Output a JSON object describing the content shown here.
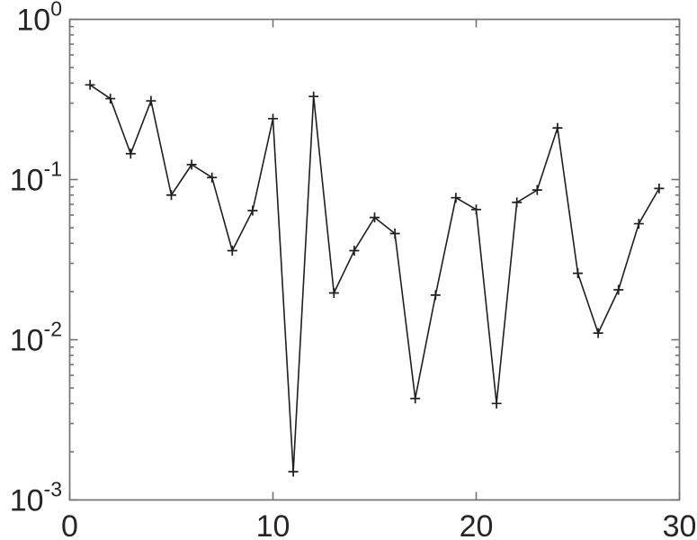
{
  "chart_data": {
    "type": "line",
    "title": "",
    "subtitle": "",
    "xlabel": "",
    "ylabel": "",
    "xscale": "linear",
    "yscale": "log",
    "xlim": [
      0,
      30
    ],
    "ylim": [
      0.001,
      1
    ],
    "grid": false,
    "legend": null,
    "marker": "+",
    "x": [
      1,
      2,
      3,
      4,
      5,
      6,
      7,
      8,
      9,
      10,
      11,
      12,
      13,
      14,
      15,
      16,
      17,
      18,
      19,
      20,
      21,
      22,
      23,
      24,
      25,
      26,
      27,
      28,
      29
    ],
    "y": [
      0.39,
      0.32,
      0.145,
      0.31,
      0.08,
      0.124,
      0.103,
      0.036,
      0.064,
      0.24,
      0.0015,
      0.33,
      0.0196,
      0.036,
      0.058,
      0.046,
      0.0043,
      0.019,
      0.077,
      0.065,
      0.004,
      0.072,
      0.086,
      0.21,
      0.026,
      0.011,
      0.0205,
      0.053,
      0.088
    ],
    "x_ticks": [
      {
        "value": 0,
        "label": "0"
      },
      {
        "value": 10,
        "label": "10"
      },
      {
        "value": 20,
        "label": "20"
      },
      {
        "value": 30,
        "label": "30"
      }
    ],
    "y_ticks": [
      {
        "value": 1,
        "base": "10",
        "exp": "0"
      },
      {
        "value": 0.1,
        "base": "10",
        "exp": "-1"
      },
      {
        "value": 0.01,
        "base": "10",
        "exp": "-2"
      },
      {
        "value": 0.001,
        "base": "10",
        "exp": "-3"
      }
    ],
    "y_minor_ticks": true,
    "colors": {
      "line": "#1f1f1f",
      "marker": "#1f1f1f",
      "axis": "#737373",
      "text": "#262626",
      "background": "#ffffff"
    }
  }
}
